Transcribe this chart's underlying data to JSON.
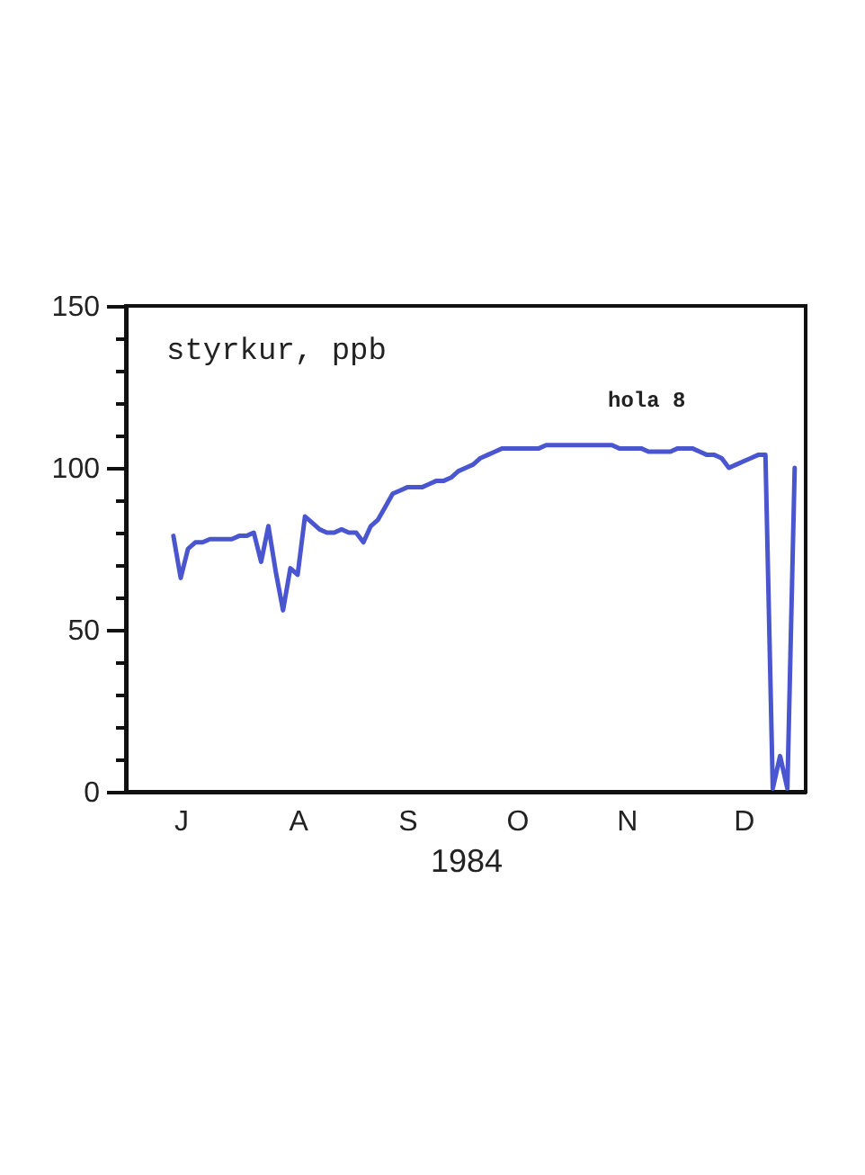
{
  "chart_data": {
    "type": "line",
    "xlabel": "1984",
    "ylabel": "styrkur, ppb",
    "annotations": [
      "hola 8"
    ],
    "categories": [
      null,
      null,
      null,
      null,
      null,
      null,
      null,
      "J",
      null,
      null,
      null,
      null,
      null,
      null,
      null,
      null,
      null,
      null,
      null,
      null,
      null,
      null,
      null,
      "A",
      null,
      null,
      null,
      null,
      null,
      null,
      null,
      null,
      null,
      null,
      null,
      null,
      null,
      null,
      "S",
      null,
      null,
      null,
      null,
      null,
      null,
      null,
      null,
      null,
      null,
      null,
      null,
      null,
      null,
      "O",
      null,
      null,
      null,
      null,
      null,
      null,
      null,
      null,
      null,
      null,
      null,
      null,
      null,
      null,
      "N",
      null,
      null,
      null,
      null,
      null,
      null,
      null,
      null,
      null,
      null,
      null,
      null,
      null,
      null,
      null,
      "D",
      null,
      null,
      null,
      null,
      null,
      null,
      null,
      null
    ],
    "series": [
      {
        "color": "#4a55d0",
        "values": [
          null,
          null,
          null,
          null,
          null,
          null,
          79,
          66,
          75,
          77,
          77,
          78,
          78,
          78,
          78,
          79,
          79,
          80,
          71,
          82,
          68,
          56,
          69,
          67,
          85,
          83,
          81,
          80,
          80,
          81,
          80,
          80,
          77,
          82,
          84,
          88,
          92,
          93,
          94,
          94,
          94,
          95,
          96,
          96,
          97,
          99,
          100,
          101,
          103,
          104,
          105,
          106,
          106,
          106,
          106,
          106,
          106,
          107,
          107,
          107,
          107,
          107,
          107,
          107,
          107,
          107,
          107,
          106,
          106,
          106,
          106,
          105,
          105,
          105,
          105,
          106,
          106,
          106,
          105,
          104,
          104,
          103,
          100,
          101,
          102,
          103,
          104,
          104,
          1,
          11,
          1,
          100,
          null
        ]
      }
    ],
    "ylim": [
      0,
      150
    ],
    "yticks": [
      0,
      {
        "value": 10,
        "label": null
      },
      {
        "value": 20,
        "label": null
      },
      {
        "value": 30,
        "label": null
      },
      {
        "value": 40,
        "label": null
      },
      50,
      {
        "value": 60,
        "label": null
      },
      {
        "value": 70,
        "label": null
      },
      {
        "value": 80,
        "label": null
      },
      {
        "value": 90,
        "label": null
      },
      100,
      {
        "value": 110,
        "label": null
      },
      {
        "value": 120,
        "label": null
      },
      {
        "value": 130,
        "label": null
      },
      {
        "value": 140,
        "label": null
      },
      150
    ],
    "grid": false,
    "marker": "none",
    "line_style": "solid"
  }
}
